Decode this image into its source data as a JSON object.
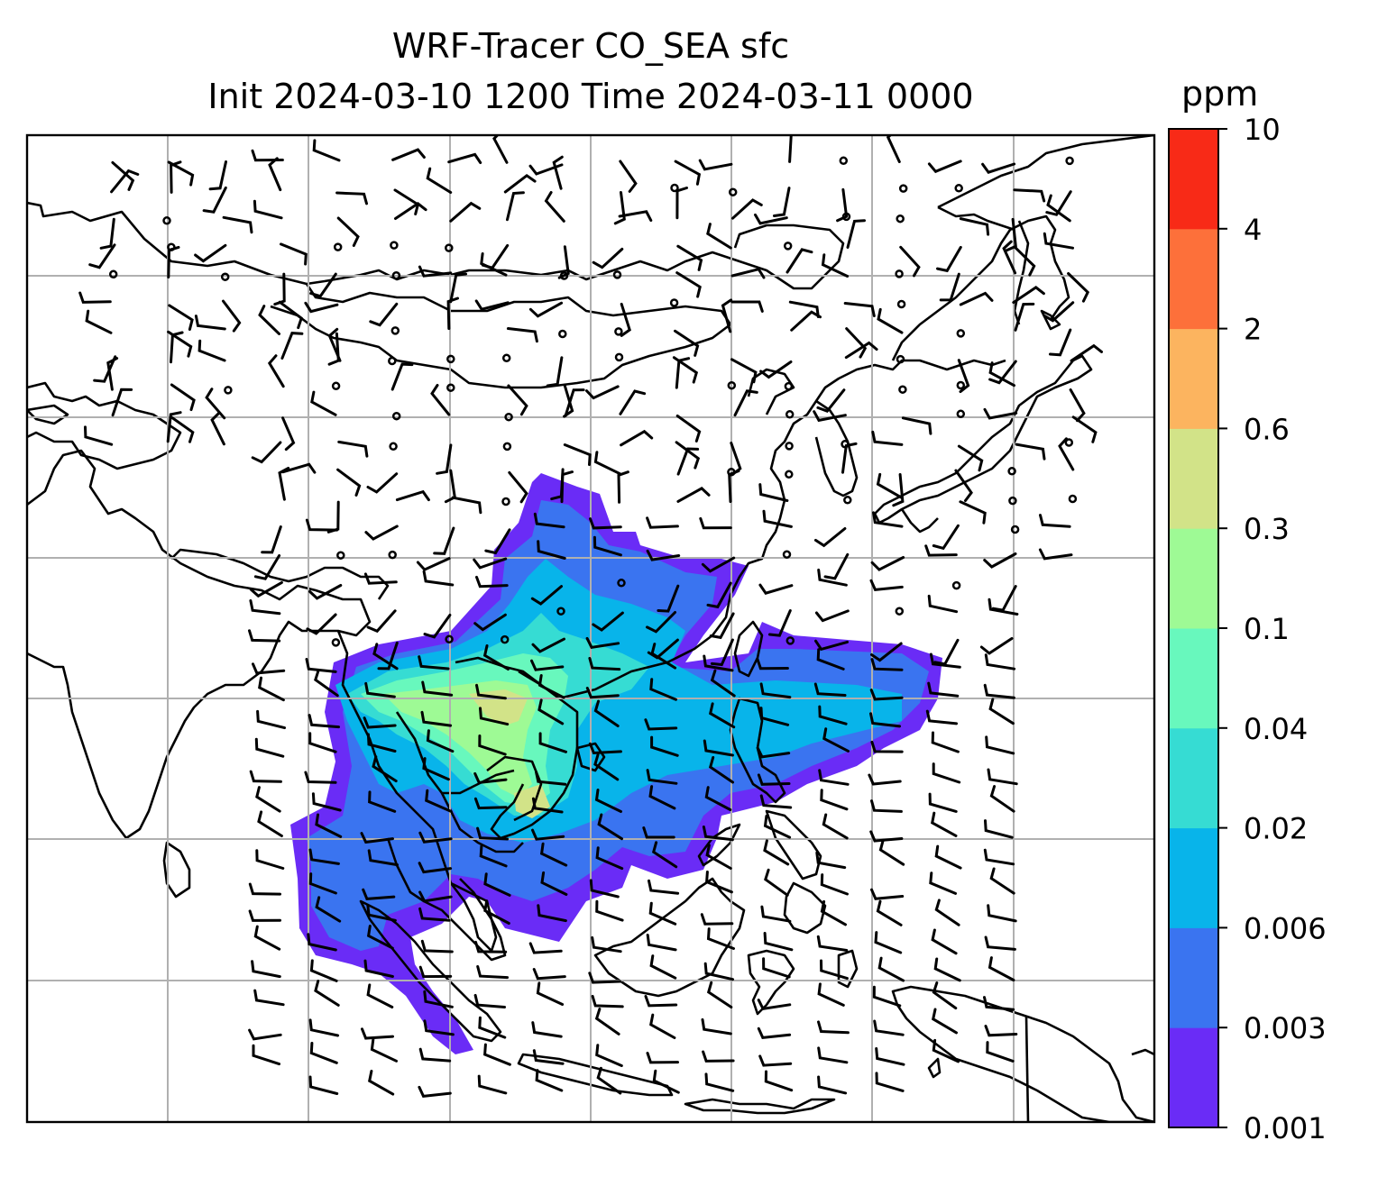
{
  "title": {
    "line1": "WRF-Tracer CO_SEA sfc",
    "line2": "Init 2024-03-10 1200 Time 2024-03-11 0000"
  },
  "colorbar": {
    "unit": "ppm",
    "levels": [
      "0.001",
      "0.003",
      "0.006",
      "0.02",
      "0.04",
      "0.1",
      "0.3",
      "0.6",
      "2",
      "4",
      "10"
    ],
    "colors": [
      "#6a2cf6",
      "#3a74f0",
      "#08b4ea",
      "#36dcd3",
      "#68f8bd",
      "#9efa95",
      "#d2e388",
      "#fcb45f",
      "#fd703a",
      "#f82a17"
    ]
  },
  "map": {
    "gridlines": true,
    "wind_barbs": true,
    "plume_color_scale": "rainbow"
  }
}
